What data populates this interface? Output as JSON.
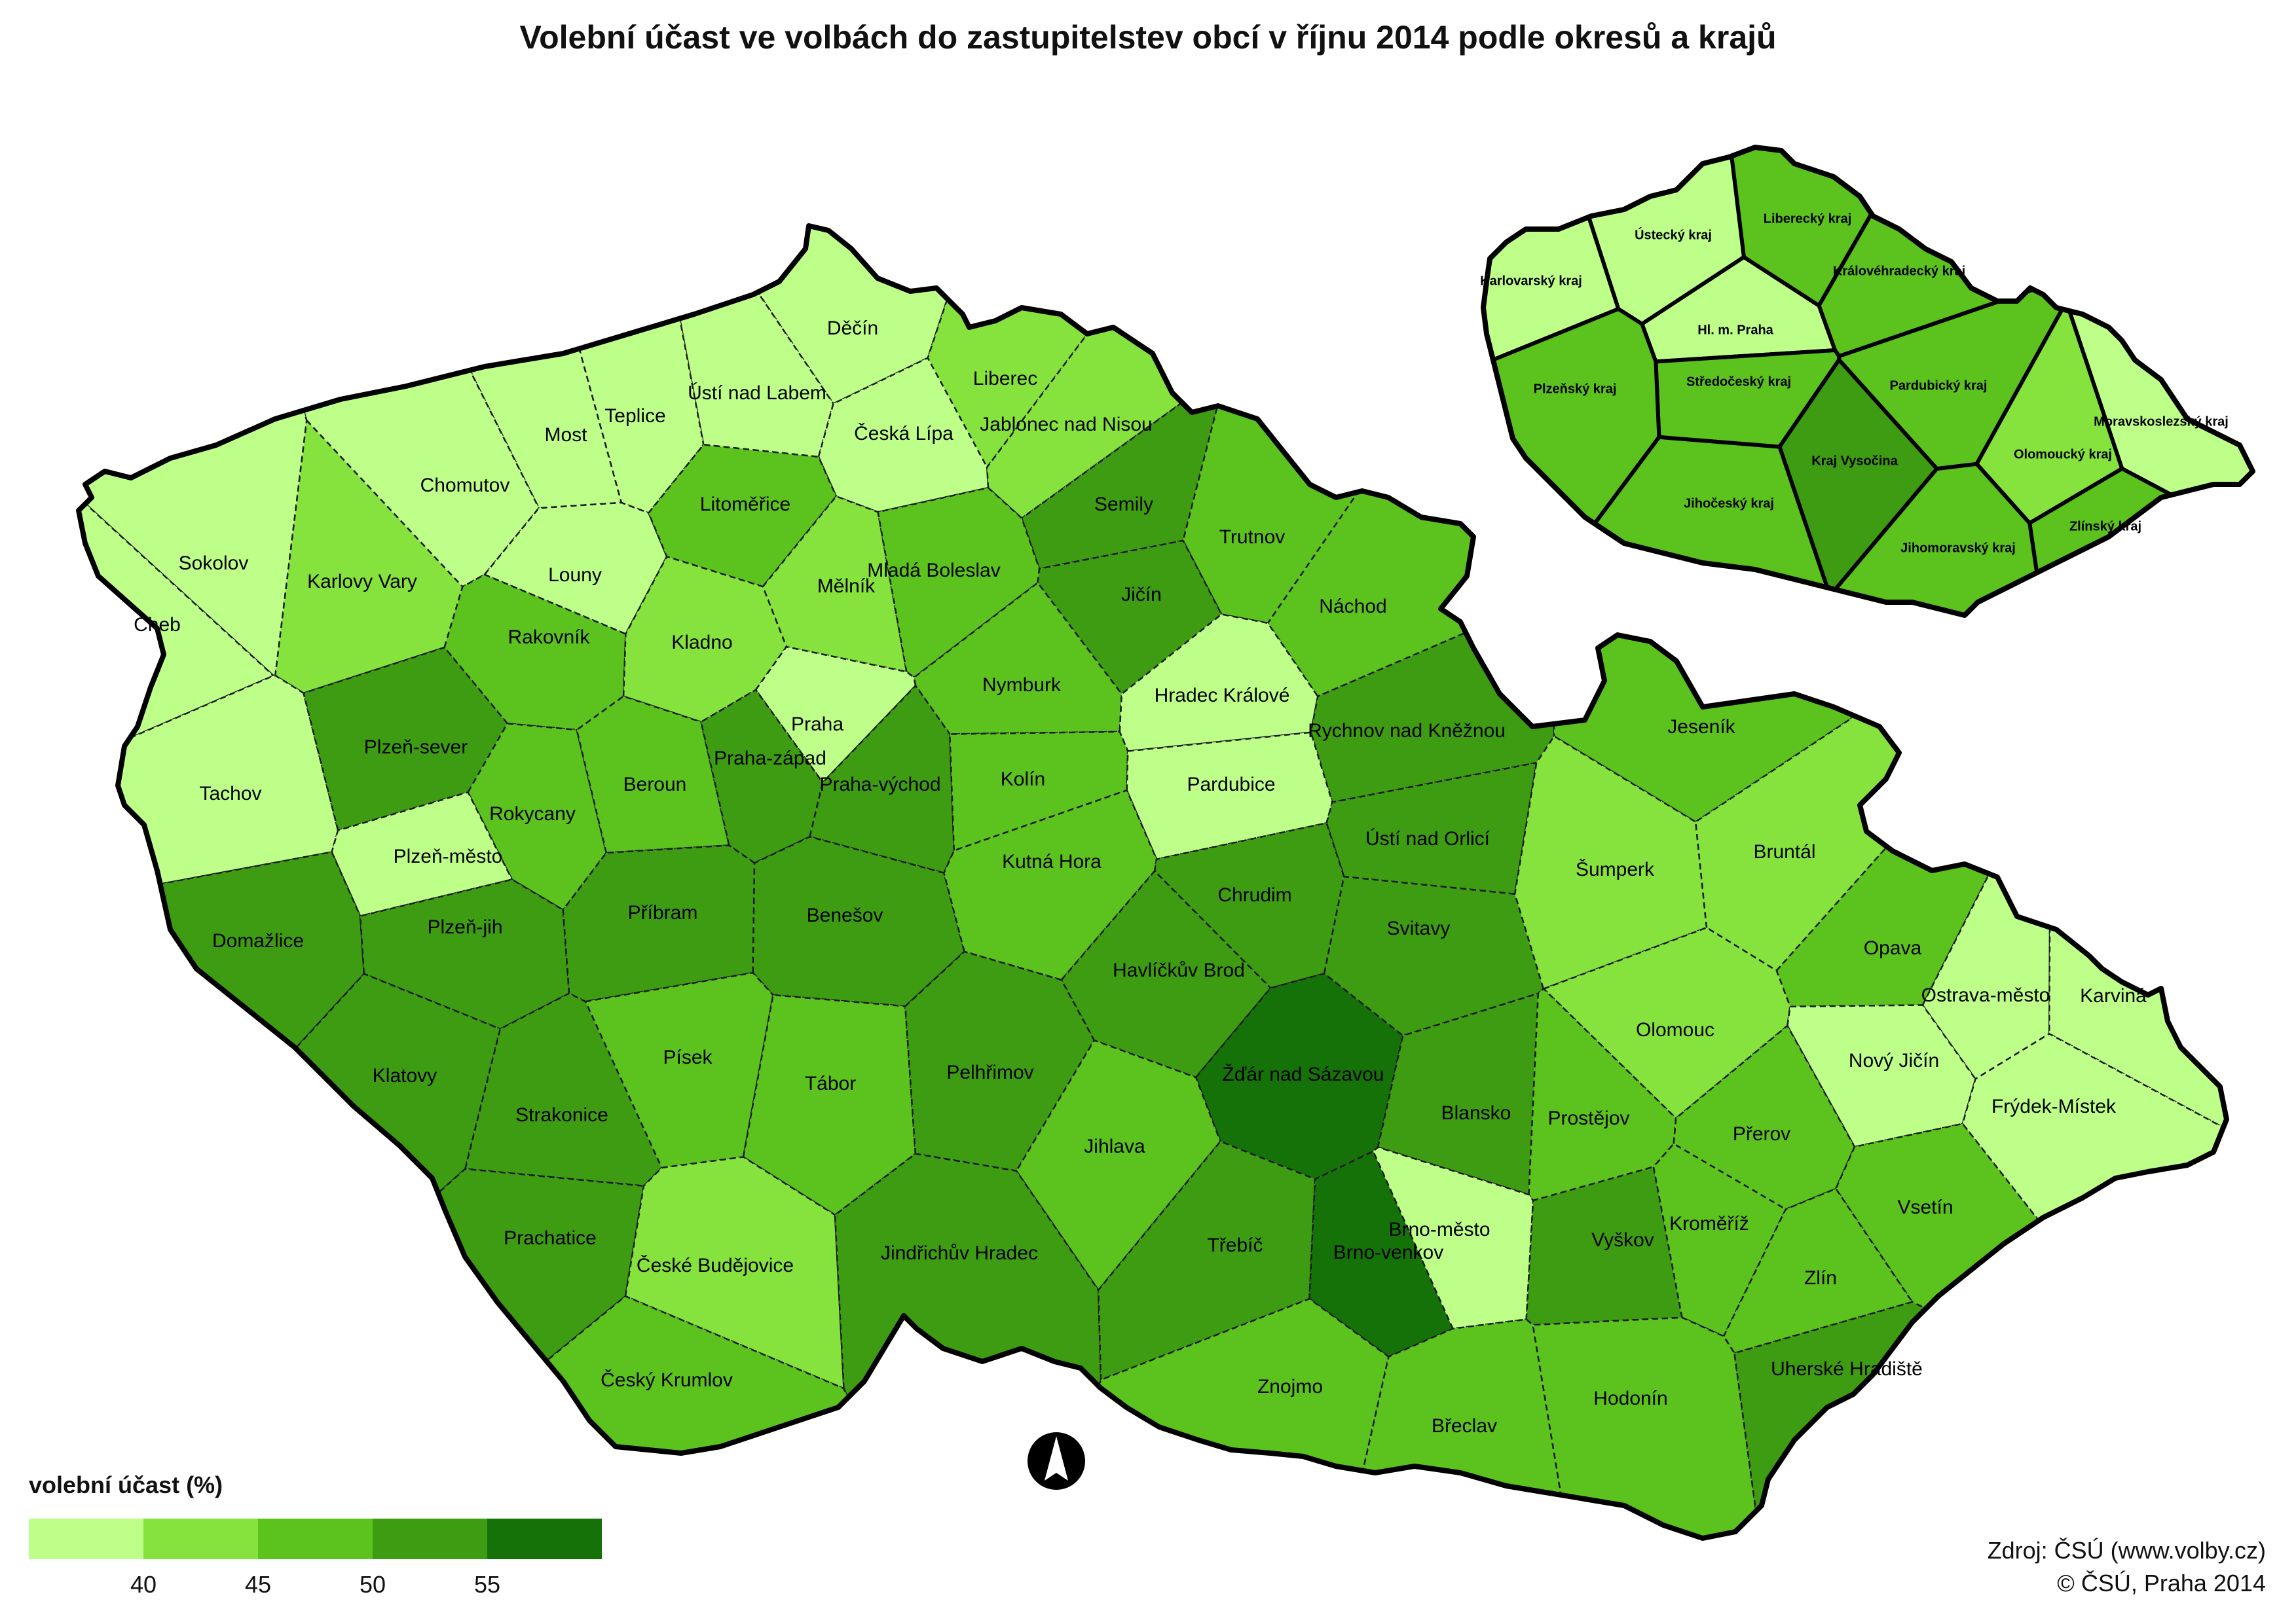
{
  "title": "Volební účast ve volbách do zastupitelstev obcí v říjnu 2014 podle okresů a krajů",
  "legend": {
    "title": "volební účast (%)",
    "ticks": [
      "40",
      "45",
      "50",
      "55"
    ],
    "classes": [
      {
        "range": "< 40",
        "color": "#beff8a"
      },
      {
        "range": "40 – 45",
        "color": "#86e33e"
      },
      {
        "range": "45 – 50",
        "color": "#5cc21e"
      },
      {
        "range": "50 – 55",
        "color": "#3e9c12"
      },
      {
        "range": "> 55",
        "color": "#157208"
      }
    ]
  },
  "source": "Zdroj: ČSÚ (www.volby.cz)",
  "copyright": "© ČSÚ, Praha 2014",
  "north_arrow": "north-arrow-icon",
  "districts": [
    {
      "name": "Děčín",
      "class": 0
    },
    {
      "name": "Ústí nad Labem",
      "class": 0
    },
    {
      "name": "Teplice",
      "class": 0
    },
    {
      "name": "Most",
      "class": 0
    },
    {
      "name": "Chomutov",
      "class": 0
    },
    {
      "name": "Česká Lípa",
      "class": 0
    },
    {
      "name": "Liberec",
      "class": 1
    },
    {
      "name": "Jablonec nad Nisou",
      "class": 1
    },
    {
      "name": "Semily",
      "class": 3
    },
    {
      "name": "Sokolov",
      "class": 0
    },
    {
      "name": "Cheb",
      "class": 0
    },
    {
      "name": "Karlovy Vary",
      "class": 1
    },
    {
      "name": "Louny",
      "class": 0
    },
    {
      "name": "Litoměřice",
      "class": 2
    },
    {
      "name": "Mělník",
      "class": 1
    },
    {
      "name": "Mladá Boleslav",
      "class": 2
    },
    {
      "name": "Trutnov",
      "class": 2
    },
    {
      "name": "Jičín",
      "class": 3
    },
    {
      "name": "Náchod",
      "class": 2
    },
    {
      "name": "Rakovník",
      "class": 2
    },
    {
      "name": "Kladno",
      "class": 1
    },
    {
      "name": "Praha",
      "class": 0
    },
    {
      "name": "Nymburk",
      "class": 2
    },
    {
      "name": "Hradec Králové",
      "class": 0
    },
    {
      "name": "Rychnov nad Kněžnou",
      "class": 3
    },
    {
      "name": "Tachov",
      "class": 0
    },
    {
      "name": "Plzeň-sever",
      "class": 3
    },
    {
      "name": "Rokycany",
      "class": 2
    },
    {
      "name": "Plzeň-město",
      "class": 0
    },
    {
      "name": "Beroun",
      "class": 2
    },
    {
      "name": "Praha-západ",
      "class": 3
    },
    {
      "name": "Praha-východ",
      "class": 3
    },
    {
      "name": "Kolín",
      "class": 2
    },
    {
      "name": "Pardubice",
      "class": 0
    },
    {
      "name": "Ústí nad Orlicí",
      "class": 3
    },
    {
      "name": "Jeseník",
      "class": 2
    },
    {
      "name": "Šumperk",
      "class": 1
    },
    {
      "name": "Bruntál",
      "class": 1
    },
    {
      "name": "Domažlice",
      "class": 3
    },
    {
      "name": "Plzeň-jih",
      "class": 3
    },
    {
      "name": "Příbram",
      "class": 3
    },
    {
      "name": "Benešov",
      "class": 3
    },
    {
      "name": "Kutná Hora",
      "class": 2
    },
    {
      "name": "Chrudim",
      "class": 3
    },
    {
      "name": "Svitavy",
      "class": 3
    },
    {
      "name": "Havlíčkův Brod",
      "class": 3
    },
    {
      "name": "Opava",
      "class": 2
    },
    {
      "name": "Ostrava-město",
      "class": 0
    },
    {
      "name": "Karviná",
      "class": 0
    },
    {
      "name": "Olomouc",
      "class": 1
    },
    {
      "name": "Nový Jičín",
      "class": 0
    },
    {
      "name": "Frýdek-Místek",
      "class": 0
    },
    {
      "name": "Klatovy",
      "class": 3
    },
    {
      "name": "Písek",
      "class": 2
    },
    {
      "name": "Tábor",
      "class": 2
    },
    {
      "name": "Pelhřimov",
      "class": 3
    },
    {
      "name": "Žďár nad Sázavou",
      "class": 4
    },
    {
      "name": "Strakonice",
      "class": 3
    },
    {
      "name": "Jihlava",
      "class": 2
    },
    {
      "name": "Blansko",
      "class": 3
    },
    {
      "name": "Prostějov",
      "class": 2
    },
    {
      "name": "Přerov",
      "class": 2
    },
    {
      "name": "Prachatice",
      "class": 3
    },
    {
      "name": "České Budějovice",
      "class": 1
    },
    {
      "name": "Jindřichův Hradec",
      "class": 3
    },
    {
      "name": "Třebíč",
      "class": 3
    },
    {
      "name": "Brno-město",
      "class": 0
    },
    {
      "name": "Brno-venkov",
      "class": 4
    },
    {
      "name": "Vyškov",
      "class": 3
    },
    {
      "name": "Kroměříž",
      "class": 2
    },
    {
      "name": "Vsetín",
      "class": 2
    },
    {
      "name": "Zlín",
      "class": 2
    },
    {
      "name": "Český Krumlov",
      "class": 2
    },
    {
      "name": "Znojmo",
      "class": 2
    },
    {
      "name": "Břeclav",
      "class": 2
    },
    {
      "name": "Hodonín",
      "class": 2
    },
    {
      "name": "Uherské Hradiště",
      "class": 3
    }
  ],
  "regions_inset": [
    {
      "name": "Ústecký kraj",
      "class": 0
    },
    {
      "name": "Liberecký kraj",
      "class": 2
    },
    {
      "name": "Karlovarský kraj",
      "class": 0
    },
    {
      "name": "Královéhradecký kraj",
      "class": 2
    },
    {
      "name": "Hl. m. Praha",
      "class": 0
    },
    {
      "name": "Středočeský kraj",
      "class": 2
    },
    {
      "name": "Plzeňský kraj",
      "class": 2
    },
    {
      "name": "Pardubický kraj",
      "class": 2
    },
    {
      "name": "Kraj Vysočina",
      "class": 3
    },
    {
      "name": "Moravskoslezský kraj",
      "class": 0
    },
    {
      "name": "Olomoucký kraj",
      "class": 1
    },
    {
      "name": "Jihočeský kraj",
      "class": 2
    },
    {
      "name": "Zlínský kraj",
      "class": 2
    },
    {
      "name": "Jihomoravský kraj",
      "class": 2
    }
  ]
}
